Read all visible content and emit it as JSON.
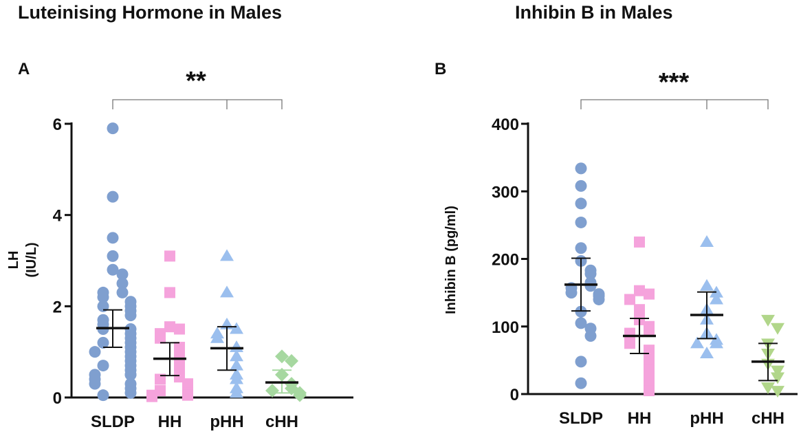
{
  "chart_data": [
    {
      "type": "scatter",
      "panel_label": "A",
      "title": "Luteinising Hormone in Males",
      "ylabel_line1": "LH",
      "ylabel_line2": "(IU/L)",
      "xlabel": "",
      "ylim": [
        0,
        6
      ],
      "yticks": [
        "0",
        "2",
        "4",
        "6"
      ],
      "yticks_values": [
        0,
        2,
        4,
        6
      ],
      "categories": [
        "SLDP",
        "HH",
        "pHH",
        "cHH"
      ],
      "significance": "**",
      "series": [
        {
          "name": "SLDP",
          "color": "#7f9fcf",
          "marker": "circle",
          "mean": 1.52,
          "err_low": 1.1,
          "err_high": 1.92,
          "values": [
            5.9,
            4.4,
            3.5,
            3.1,
            2.8,
            2.7,
            2.5,
            2.3,
            2.3,
            2.2,
            2.1,
            2.0,
            2.0,
            1.9,
            1.8,
            1.7,
            1.6,
            1.5,
            1.5,
            1.4,
            1.3,
            1.2,
            1.2,
            1.1,
            1.0,
            1.0,
            0.9,
            0.8,
            0.7,
            0.7,
            0.6,
            0.5,
            0.5,
            0.5,
            0.4,
            0.3,
            0.3,
            0.2,
            0.1,
            0.05
          ]
        },
        {
          "name": "HH",
          "color": "#f5a3dc",
          "marker": "square",
          "mean": 0.85,
          "err_low": 0.48,
          "err_high": 1.2,
          "values": [
            3.1,
            2.3,
            1.55,
            1.5,
            1.4,
            1.3,
            1.1,
            1.0,
            0.8,
            0.7,
            0.5,
            0.45,
            0.4,
            0.3,
            0.25,
            0.15,
            0.1,
            0.05,
            0.05,
            0.02
          ]
        },
        {
          "name": "pHH",
          "color": "#9bbfee",
          "marker": "triangle-up",
          "mean": 1.08,
          "err_low": 0.6,
          "err_high": 1.55,
          "values": [
            3.1,
            2.3,
            1.6,
            1.5,
            1.4,
            1.3,
            1.1,
            0.9,
            0.7,
            0.5,
            0.4,
            0.2,
            0.1
          ]
        },
        {
          "name": "cHH",
          "color": "#a6d8a0",
          "marker": "diamond",
          "mean": 0.33,
          "err_low": 0.1,
          "err_high": 0.6,
          "values": [
            0.9,
            0.8,
            0.5,
            0.3,
            0.2,
            0.15,
            0.1,
            0.05
          ]
        }
      ]
    },
    {
      "type": "scatter",
      "panel_label": "B",
      "title": "Inhibin B in Males",
      "ylabel": "Inhibin B (pg/ml)",
      "xlabel": "",
      "ylim": [
        0,
        400
      ],
      "yticks": [
        "0",
        "100",
        "200",
        "300",
        "400"
      ],
      "yticks_values": [
        0,
        100,
        200,
        300,
        400
      ],
      "categories": [
        "SLDP",
        "HH",
        "pHH",
        "cHH"
      ],
      "significance": "***",
      "series": [
        {
          "name": "SLDP",
          "color": "#7f9fcf",
          "marker": "circle",
          "mean": 162,
          "err_low": 123,
          "err_high": 201,
          "values": [
            334,
            308,
            282,
            254,
            216,
            197,
            183,
            178,
            165,
            160,
            157,
            150,
            148,
            145,
            140,
            122,
            105,
            97,
            86,
            48,
            16
          ]
        },
        {
          "name": "HH",
          "color": "#f5a3dc",
          "marker": "square",
          "mean": 86,
          "err_low": 60,
          "err_high": 112,
          "values": [
            225,
            153,
            148,
            140,
            125,
            110,
            100,
            95,
            90,
            85,
            80,
            75,
            65,
            55,
            45,
            35,
            25,
            15,
            5
          ]
        },
        {
          "name": "pHH",
          "color": "#9bbfee",
          "marker": "triangle-up",
          "mean": 117,
          "err_low": 82,
          "err_high": 151,
          "values": [
            225,
            160,
            150,
            140,
            125,
            110,
            90,
            80,
            75,
            75,
            60
          ]
        },
        {
          "name": "cHH",
          "color": "#b1d68a",
          "marker": "triangle-down",
          "mean": 48,
          "err_low": 20,
          "err_high": 75,
          "values": [
            110,
            98,
            75,
            60,
            45,
            35,
            25,
            10,
            5
          ]
        }
      ]
    }
  ]
}
